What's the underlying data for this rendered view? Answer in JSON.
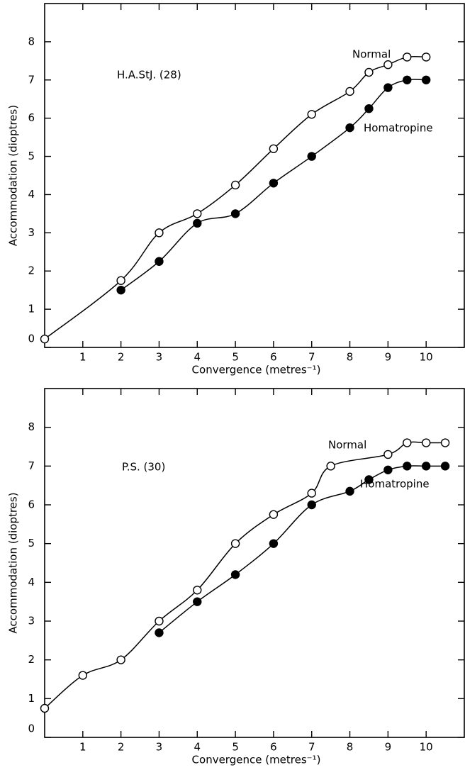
{
  "chart_data": [
    {
      "type": "scatter",
      "annotation": "H.A.StJ. (28)",
      "xlabel": "Convergence (metres⁻¹)",
      "ylabel": "Accommodation (dioptres)",
      "xlim": [
        0,
        11
      ],
      "ylim": [
        0,
        9
      ],
      "xticks": [
        1,
        2,
        3,
        4,
        5,
        6,
        7,
        8,
        9,
        10
      ],
      "yticks": [
        0,
        1,
        2,
        3,
        4,
        5,
        6,
        7,
        8
      ],
      "series": [
        {
          "name": "Normal",
          "color": "#000000",
          "marker": "open",
          "x": [
            0,
            2,
            3,
            4,
            5,
            6,
            7,
            8,
            8.5,
            9,
            9.5,
            10
          ],
          "values": [
            0.22,
            1.75,
            3.0,
            3.5,
            4.25,
            5.2,
            6.1,
            6.7,
            7.2,
            7.4,
            7.6,
            7.6
          ]
        },
        {
          "name": "Homatropine",
          "color": "#000000",
          "marker": "filled",
          "x": [
            2,
            3,
            4,
            5,
            6,
            7,
            8,
            8.5,
            9,
            9.5,
            10
          ],
          "values": [
            1.5,
            2.25,
            3.25,
            3.5,
            4.3,
            5.0,
            5.75,
            6.25,
            6.8,
            7.0,
            7.0
          ]
        }
      ]
    },
    {
      "type": "scatter",
      "annotation": "P.S. (30)",
      "xlabel": "Convergence (metres⁻¹)",
      "ylabel": "Accommodation (dioptres)",
      "xlim": [
        0,
        11
      ],
      "ylim": [
        0,
        9
      ],
      "xticks": [
        1,
        2,
        3,
        4,
        5,
        6,
        7,
        8,
        9,
        10
      ],
      "yticks": [
        0,
        1,
        2,
        3,
        4,
        5,
        6,
        7,
        8
      ],
      "series": [
        {
          "name": "Normal",
          "color": "#000000",
          "marker": "open",
          "x": [
            0,
            1,
            2,
            3,
            4,
            5,
            6,
            7,
            7.5,
            9,
            9.5,
            10,
            10.5
          ],
          "values": [
            0.75,
            1.6,
            2.0,
            3.0,
            3.8,
            5.0,
            5.75,
            6.3,
            7.0,
            7.3,
            7.6,
            7.6,
            7.6
          ]
        },
        {
          "name": "Homatropine",
          "color": "#000000",
          "marker": "filled",
          "x": [
            3,
            4,
            5,
            6,
            7,
            8,
            8.5,
            9,
            9.5,
            10,
            10.5
          ],
          "values": [
            2.7,
            3.5,
            4.2,
            5.0,
            6.0,
            6.35,
            6.65,
            6.9,
            7.0,
            7.0,
            7.0
          ]
        }
      ]
    }
  ]
}
